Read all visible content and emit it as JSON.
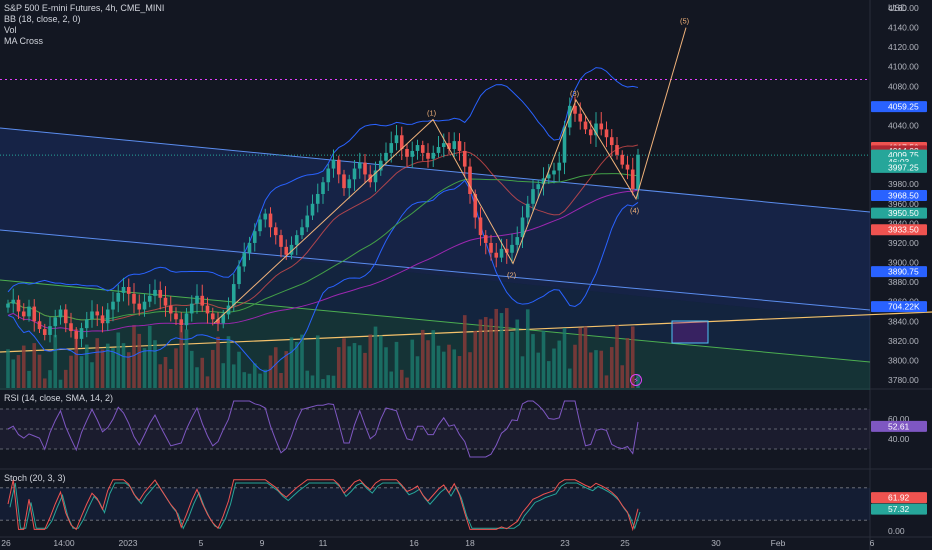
{
  "header": {
    "symbol": "S&P 500 E-mini Futures, 4h, CME_MINI",
    "indicators": [
      "BB (18, close, 2, 0)",
      "Vol",
      "MA Cross"
    ],
    "currency": "USD"
  },
  "price_axis": {
    "ticks": [
      "4160.00",
      "4140.00",
      "4120.00",
      "4100.00",
      "4080.00",
      "4040.00",
      "3980.00",
      "3960.00",
      "3940.00",
      "3920.00",
      "3900.00",
      "3880.00",
      "3860.00",
      "3840.00",
      "3820.00",
      "3800.00",
      "3780.00"
    ]
  },
  "price_tags": [
    {
      "label": "4059.25",
      "color": "#2962ff"
    },
    {
      "label": "4017.50",
      "color": "#ef5350"
    },
    {
      "label": "4014.00",
      "color": "#b22833"
    },
    {
      "label": "4009.75",
      "color": "#26a69a"
    },
    {
      "label": "46:03",
      "color": "#26a69a"
    },
    {
      "label": "3997.25",
      "color": "#26a69a"
    },
    {
      "label": "3968.50",
      "color": "#2962ff"
    },
    {
      "label": "3950.50",
      "color": "#26a69a"
    },
    {
      "label": "3933.50",
      "color": "#ef5350"
    },
    {
      "label": "3890.75",
      "color": "#2962ff"
    },
    {
      "label": "704.22K",
      "color": "#2962ff"
    }
  ],
  "wave_labels": [
    "(1)",
    "(2)",
    "(3)",
    "(4)",
    "(5)"
  ],
  "time_axis": {
    "ticks": [
      "26",
      "14:00",
      "2023",
      "5",
      "9",
      "11",
      "16",
      "18",
      "23",
      "25",
      "30",
      "Feb",
      "6"
    ]
  },
  "rsi": {
    "title": "RSI (14, close, SMA, 14, 2)",
    "ticks": [
      "60.00",
      "40.00"
    ],
    "value": "52.61",
    "value_color": "#7e57c2"
  },
  "stoch": {
    "title": "Stoch (20, 3, 3)",
    "ticks": [
      "40.00",
      "0.00"
    ],
    "k_value": "61.92",
    "d_value": "57.32",
    "k_color": "#ef5350",
    "d_color": "#26a69a"
  },
  "chart_data": {
    "type": "candlestick",
    "title": "S&P 500 E-mini Futures, 4h, CME_MINI",
    "ylabel": "USD",
    "ylim": [
      3780,
      4160
    ],
    "levels": {
      "dotted_resistance": 4087,
      "last_price": 4009.75,
      "bb_upper": 4059.25,
      "bb_mid": 3968.5,
      "bb_lower": 3890.75
    },
    "elliott_wave": [
      {
        "label": "(1)",
        "price": 4046
      },
      {
        "label": "(2)",
        "price": 3899
      },
      {
        "label": "(3)",
        "price": 4066
      },
      {
        "label": "(4)",
        "price": 3965
      },
      {
        "label": "(5)",
        "price": 4140
      }
    ],
    "closes": [
      3858,
      3862,
      3850,
      3845,
      3855,
      3840,
      3832,
      3826,
      3835,
      3844,
      3852,
      3838,
      3830,
      3822,
      3833,
      3842,
      3850,
      3846,
      3838,
      3852,
      3860,
      3869,
      3875,
      3868,
      3858,
      3852,
      3860,
      3866,
      3872,
      3864,
      3856,
      3848,
      3842,
      3836,
      3848,
      3858,
      3866,
      3856,
      3848,
      3842,
      3838,
      3847,
      3856,
      3878,
      3896,
      3910,
      3920,
      3932,
      3944,
      3950,
      3936,
      3928,
      3916,
      3908,
      3918,
      3928,
      3936,
      3948,
      3960,
      3970,
      3982,
      3996,
      4005,
      3990,
      3976,
      3985,
      3996,
      4002,
      3990,
      3982,
      3994,
      4004,
      4012,
      4022,
      4030,
      4016,
      4008,
      4014,
      4020,
      4012,
      4006,
      4012,
      4018,
      4022,
      4016,
      4024,
      4014,
      3998,
      3970,
      3946,
      3928,
      3920,
      3910,
      3905,
      3914,
      3910,
      3918,
      3926,
      3946,
      3960,
      3975,
      3980,
      3986,
      3990,
      3994,
      4002,
      4038,
      4060,
      4052,
      4044,
      4036,
      4030,
      4042,
      4036,
      4028,
      4020,
      4010,
      4000,
      3995,
      3975,
      4010
    ]
  }
}
